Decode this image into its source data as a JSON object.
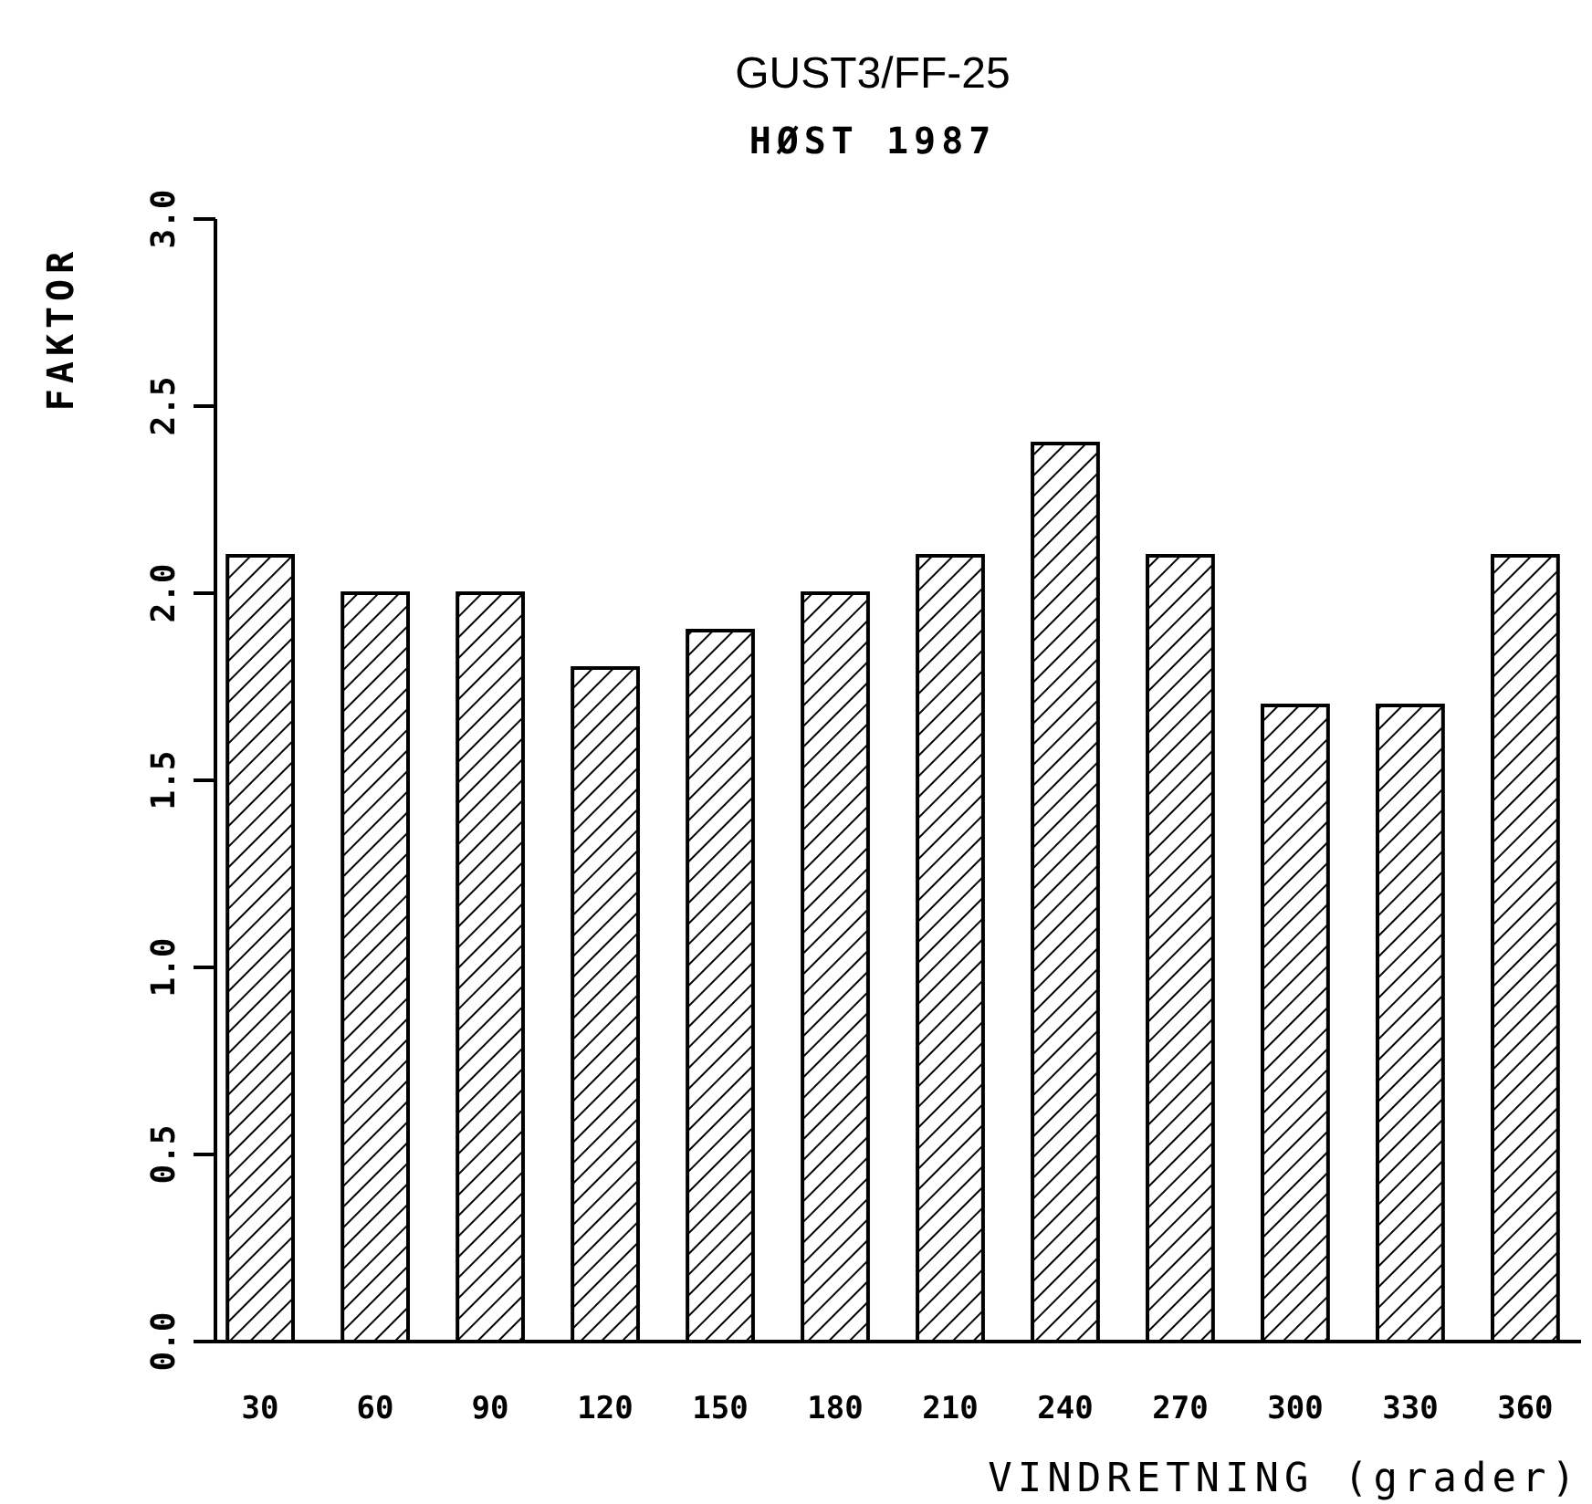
{
  "chart_data": {
    "type": "bar",
    "title": "GUST3/FF-25",
    "subtitle": "HØST 1987",
    "xlabel": "VINDRETNING (grader)",
    "ylabel": "FAKTOR",
    "categories": [
      "30",
      "60",
      "90",
      "120",
      "150",
      "180",
      "210",
      "240",
      "270",
      "300",
      "330",
      "360"
    ],
    "values": [
      2.1,
      2.0,
      2.0,
      1.8,
      1.9,
      2.0,
      2.1,
      2.4,
      2.1,
      1.7,
      1.7,
      2.1
    ],
    "color": "#000000",
    "ylim": [
      0,
      3
    ],
    "yticks": [
      {
        "value": 0,
        "label": "0.0"
      },
      {
        "value": 0.5,
        "label": "0.5"
      },
      {
        "value": 1,
        "label": "1.0"
      },
      {
        "value": 1.5,
        "label": "1.5"
      },
      {
        "value": 2,
        "label": "2.0"
      },
      {
        "value": 2.5,
        "label": "2.5"
      },
      {
        "value": 3,
        "label": "3.0"
      }
    ],
    "grid": false
  }
}
